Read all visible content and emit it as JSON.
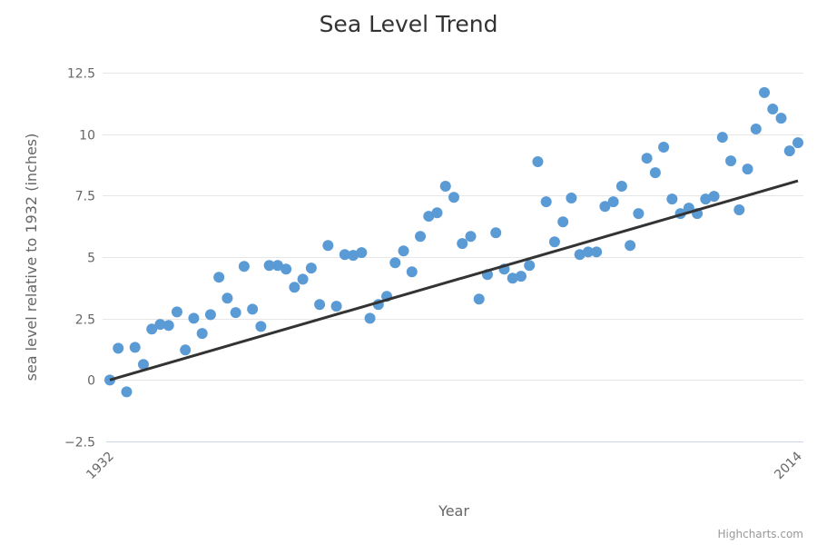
{
  "chart_data": {
    "type": "scatter",
    "title": "Sea Level Trend",
    "xlabel": "Year",
    "ylabel": "sea level relative to 1932 (inches)",
    "xlim": [
      1932,
      2014
    ],
    "ylim": [
      -2.5,
      12.5
    ],
    "x_tick_labels": [
      "1932",
      "2014"
    ],
    "y_ticks": [
      -2.5,
      0,
      2.5,
      5,
      7.5,
      10,
      12.5
    ],
    "y_tick_labels": [
      "−2.5",
      "0",
      "2.5",
      "5",
      "7.5",
      "10",
      "12.5"
    ],
    "grid": true,
    "legend": "none",
    "credits": "Highcharts.com",
    "colors": {
      "points": "#5b9bd5",
      "trend": "#333333",
      "grid": "#e6e6e6",
      "axis": "#ccd6eb"
    },
    "series": [
      {
        "name": "Sea level",
        "x_start": 1932,
        "values": [
          0,
          1.29,
          -0.48,
          1.33,
          0.63,
          2.07,
          2.26,
          2.22,
          2.77,
          1.22,
          2.51,
          1.89,
          2.66,
          4.18,
          3.33,
          2.74,
          4.62,
          2.88,
          2.18,
          4.66,
          4.66,
          4.51,
          3.77,
          4.1,
          4.55,
          3.07,
          5.47,
          3.0,
          5.1,
          5.07,
          5.18,
          2.51,
          3.07,
          3.4,
          4.77,
          5.25,
          4.4,
          5.84,
          6.66,
          6.8,
          7.88,
          7.43,
          5.55,
          5.84,
          3.29,
          4.29,
          5.99,
          4.51,
          4.14,
          4.22,
          4.66,
          8.88,
          7.25,
          5.62,
          6.43,
          7.4,
          5.1,
          5.21,
          5.21,
          7.06,
          7.25,
          7.88,
          5.47,
          6.77,
          9.02,
          8.43,
          9.47,
          7.36,
          6.77,
          6.99,
          6.77,
          7.36,
          7.47,
          9.87,
          8.91,
          6.92,
          8.58,
          10.21,
          11.69,
          11.02,
          10.65,
          9.32,
          9.65
        ]
      },
      {
        "name": "Trend",
        "type": "line",
        "x": [
          1932,
          2014
        ],
        "values": [
          0,
          8.1
        ]
      }
    ]
  }
}
